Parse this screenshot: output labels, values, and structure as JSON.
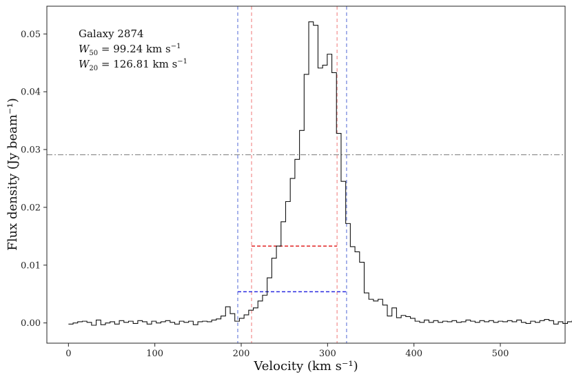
{
  "chart_data": {
    "type": "line",
    "style": "step",
    "xlabel": "Velocity (km s⁻¹)",
    "ylabel": "Flux density (Jy beam⁻¹)",
    "xlim": [
      -25,
      575
    ],
    "ylim": [
      -0.0035,
      0.0548
    ],
    "xticks": [
      0,
      100,
      200,
      300,
      400,
      500
    ],
    "yticks": [
      0.0,
      0.01,
      0.02,
      0.03,
      0.04,
      0.05
    ],
    "xtick_labels": [
      "0",
      "100",
      "200",
      "300",
      "400",
      "500"
    ],
    "ytick_labels": [
      "0.00",
      "0.01",
      "0.02",
      "0.03",
      "0.04",
      "0.05"
    ],
    "grid": false,
    "annotation": {
      "line1": "Galaxy 2874",
      "w50_symbol": "W",
      "w50_sub": "50",
      "w50_text": " = 99.24 km s",
      "w20_symbol": "W",
      "w20_sub": "20",
      "w20_text": " = 126.81 km s",
      "unit_exp": "−1"
    },
    "spectrum": {
      "x_start": 0,
      "bin_width": 5.35,
      "values": [
        -0.0002,
        0.0,
        0.0002,
        0.0003,
        0.0001,
        -0.0004,
        0.0005,
        -0.0003,
        0.0,
        0.0002,
        -0.0002,
        0.0004,
        0.0001,
        0.0003,
        -0.0001,
        0.0004,
        0.0002,
        -0.0002,
        0.0003,
        0.0,
        0.0002,
        0.0004,
        0.0001,
        -0.0002,
        0.0003,
        0.0001,
        0.0003,
        -0.0003,
        0.0002,
        0.0003,
        0.0002,
        0.0005,
        0.0007,
        0.0012,
        0.0028,
        0.0016,
        0.0003,
        0.0008,
        0.0014,
        0.0022,
        0.0026,
        0.0038,
        0.0048,
        0.0078,
        0.0112,
        0.0133,
        0.0175,
        0.021,
        0.025,
        0.0283,
        0.0333,
        0.043,
        0.0521,
        0.0515,
        0.0441,
        0.0446,
        0.0465,
        0.0433,
        0.0328,
        0.0245,
        0.0172,
        0.0132,
        0.0123,
        0.0105,
        0.0052,
        0.0041,
        0.0038,
        0.0041,
        0.0031,
        0.0012,
        0.0026,
        0.0009,
        0.0013,
        0.0011,
        0.0008,
        0.0003,
        0.0001,
        0.0005,
        0.0001,
        0.0004,
        0.0001,
        0.0003,
        0.0002,
        0.0004,
        0.0001,
        0.0002,
        0.0005,
        0.0003,
        0.0001,
        0.0004,
        0.0002,
        0.0004,
        0.0001,
        0.0003,
        0.0002,
        0.0004,
        0.0002,
        0.0005,
        0.0001,
        -0.0001,
        0.0003,
        0.0001,
        0.0004,
        0.0006,
        0.0004,
        -0.0002,
        0.0002,
        -0.0001,
        0.0002,
        0.0004,
        0.0002,
        -0.0004,
        0.0001,
        -0.0001,
        0.0001,
        0.0005,
        0.0003,
        -0.0002,
        0.0002,
        -0.0001,
        0.0003,
        0.0004,
        0.0002,
        0.0001,
        0.0004,
        0.0005,
        0.0003,
        0.0006,
        0.0002,
        -0.0003,
        0.0002,
        -0.0001,
        0.0004,
        0.0002
      ],
      "color": "#111111"
    },
    "reference_lines": [
      {
        "orientation": "horizontal",
        "value": 0.0291,
        "color": "#888888",
        "dash": "8,3,2,3"
      },
      {
        "orientation": "vertical",
        "value": 196,
        "color": "#6c7fdc",
        "dash": "5,4"
      },
      {
        "orientation": "vertical",
        "value": 322,
        "color": "#6c7fdc",
        "dash": "5,4"
      },
      {
        "orientation": "vertical",
        "value": 212,
        "color": "#f28c8c",
        "dash": "5,4"
      },
      {
        "orientation": "vertical",
        "value": 311,
        "color": "#f28c8c",
        "dash": "5,4"
      }
    ],
    "width_segments": [
      {
        "label": "W50",
        "x0": 212,
        "x1": 311,
        "y": 0.0133,
        "color": "#e02020"
      },
      {
        "label": "W20",
        "x0": 196,
        "x1": 322,
        "y": 0.0054,
        "color": "#2a2ae0"
      }
    ]
  }
}
